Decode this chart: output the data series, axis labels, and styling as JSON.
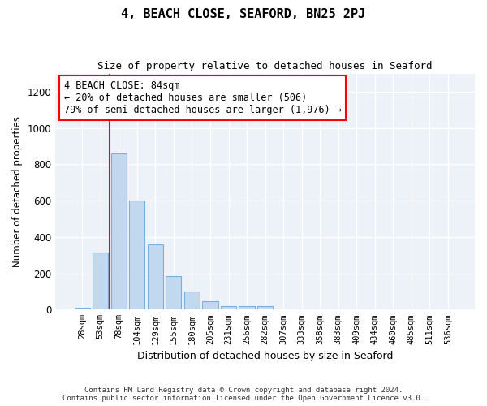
{
  "title": "4, BEACH CLOSE, SEAFORD, BN25 2PJ",
  "subtitle": "Size of property relative to detached houses in Seaford",
  "xlabel": "Distribution of detached houses by size in Seaford",
  "ylabel": "Number of detached properties",
  "bar_color": "#c2d8ef",
  "bar_edge_color": "#7ab0d8",
  "background_color": "#edf2f9",
  "categories": [
    "28sqm",
    "53sqm",
    "78sqm",
    "104sqm",
    "129sqm",
    "155sqm",
    "180sqm",
    "205sqm",
    "231sqm",
    "256sqm",
    "282sqm",
    "307sqm",
    "333sqm",
    "358sqm",
    "383sqm",
    "409sqm",
    "434sqm",
    "460sqm",
    "485sqm",
    "511sqm",
    "536sqm"
  ],
  "values": [
    10,
    315,
    860,
    600,
    360,
    185,
    100,
    45,
    20,
    20,
    20,
    0,
    0,
    0,
    0,
    0,
    0,
    0,
    0,
    0,
    0
  ],
  "ylim": [
    0,
    1300
  ],
  "yticks": [
    0,
    200,
    400,
    600,
    800,
    1000,
    1200
  ],
  "property_line_x": 1.5,
  "annotation_text": "4 BEACH CLOSE: 84sqm\n← 20% of detached houses are smaller (506)\n79% of semi-detached houses are larger (1,976) →",
  "footer_line1": "Contains HM Land Registry data © Crown copyright and database right 2024.",
  "footer_line2": "Contains public sector information licensed under the Open Government Licence v3.0."
}
